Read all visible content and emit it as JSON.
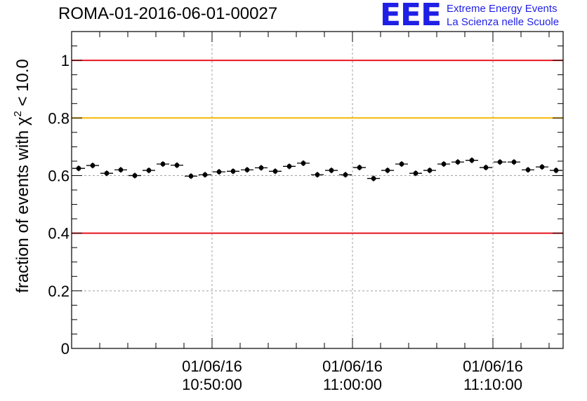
{
  "header": {
    "run_title": "ROMA-01-2016-06-01-00027",
    "logo": {
      "mark": "EEE",
      "line1": "Extreme Energy Events",
      "line2": "La Scienza nelle Scuole",
      "color": "#1f1fe6"
    }
  },
  "chart_data": {
    "type": "scatter",
    "title": "ROMA-01-2016-06-01-00027",
    "xlabel": "",
    "ylabel": "fraction of events with χ² < 10.0",
    "ylabel_parts": {
      "pre": "fraction of events with ",
      "sym": "χ",
      "sup": "2",
      "post": " < 10.0"
    },
    "ylim": [
      0,
      1.1
    ],
    "yticks": [
      0,
      0.2,
      0.4,
      0.6,
      0.8,
      1
    ],
    "ytick_labels": [
      "0",
      "0.2",
      "0.4",
      "0.6",
      "0.8",
      "1"
    ],
    "xlim_minutes": [
      0,
      35
    ],
    "xticks_minutes": [
      10,
      20,
      30
    ],
    "xtick_labels": [
      [
        "01/06/16",
        "10:50:00"
      ],
      [
        "01/06/16",
        "11:00:00"
      ],
      [
        "01/06/16",
        "11:10:00"
      ]
    ],
    "grid": true,
    "reference_lines": [
      {
        "y": 1.0,
        "color": "#e8141e"
      },
      {
        "y": 0.8,
        "color": "#f5b800"
      },
      {
        "y": 0.4,
        "color": "#e8141e"
      }
    ],
    "series": [
      {
        "bin_width_minutes": 1,
        "y_error": 0.01,
        "values": [
          0.625,
          0.635,
          0.608,
          0.62,
          0.6,
          0.618,
          0.64,
          0.636,
          0.598,
          0.603,
          0.613,
          0.615,
          0.62,
          0.627,
          0.615,
          0.632,
          0.643,
          0.603,
          0.618,
          0.603,
          0.628,
          0.59,
          0.618,
          0.64,
          0.608,
          0.618,
          0.64,
          0.647,
          0.653,
          0.628,
          0.647,
          0.647,
          0.62,
          0.63,
          0.618
        ],
        "color": "#000000"
      }
    ]
  }
}
